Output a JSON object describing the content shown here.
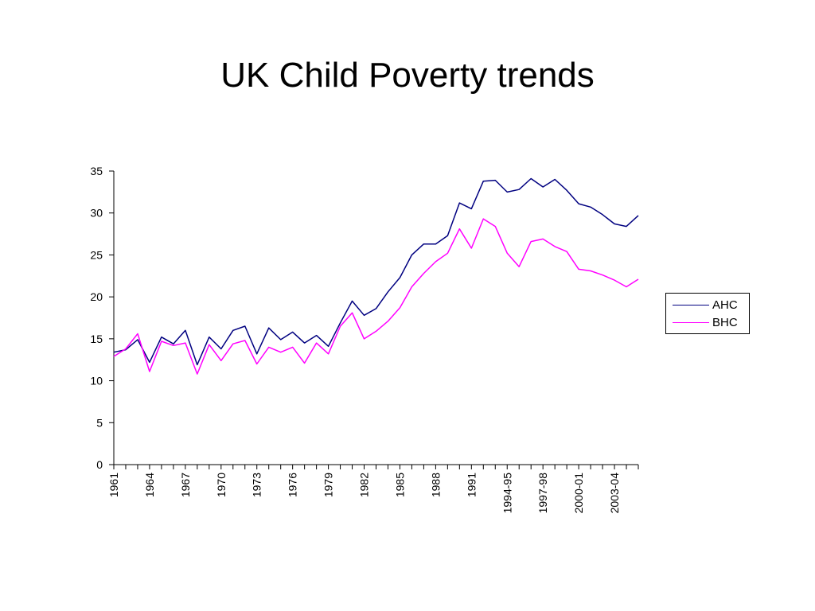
{
  "title": "UK Child Poverty trends",
  "colors": {
    "AHC": "#000080",
    "BHC": "#ff00ff"
  },
  "chart_data": {
    "type": "line",
    "title": "UK Child Poverty trends",
    "xlabel": "",
    "ylabel": "",
    "ylim": [
      0,
      35
    ],
    "yticks": [
      0,
      5,
      10,
      15,
      20,
      25,
      30,
      35
    ],
    "grid": false,
    "legend": "right",
    "x": [
      "1961",
      "1962",
      "1963",
      "1964",
      "1965",
      "1966",
      "1967",
      "1968",
      "1969",
      "1970",
      "1971",
      "1972",
      "1973",
      "1974",
      "1975",
      "1976",
      "1977",
      "1978",
      "1979",
      "1980",
      "1981",
      "1982",
      "1983",
      "1984",
      "1985",
      "1986",
      "1987",
      "1988",
      "1989",
      "1990",
      "1991",
      "1992",
      "1993-94",
      "1994-95",
      "1995-96",
      "1996-97",
      "1997-98",
      "1998-99",
      "1999-00",
      "2000-01",
      "2001-02",
      "2002-03",
      "2003-04",
      "2004-05",
      "2005-06"
    ],
    "xtick_labels": [
      {
        "index": 0,
        "label": "1961"
      },
      {
        "index": 3,
        "label": "1964"
      },
      {
        "index": 6,
        "label": "1967"
      },
      {
        "index": 9,
        "label": "1970"
      },
      {
        "index": 12,
        "label": "1973"
      },
      {
        "index": 15,
        "label": "1976"
      },
      {
        "index": 18,
        "label": "1979"
      },
      {
        "index": 21,
        "label": "1982"
      },
      {
        "index": 24,
        "label": "1985"
      },
      {
        "index": 27,
        "label": "1988"
      },
      {
        "index": 30,
        "label": "1991"
      },
      {
        "index": 33,
        "label": "1994-95"
      },
      {
        "index": 36,
        "label": "1997-98"
      },
      {
        "index": 39,
        "label": "2000-01"
      },
      {
        "index": 42,
        "label": "2003-04"
      }
    ],
    "series": [
      {
        "name": "AHC",
        "values": [
          13.4,
          13.7,
          14.9,
          12.2,
          15.2,
          14.4,
          16.0,
          11.9,
          15.2,
          13.8,
          16.0,
          16.5,
          13.2,
          16.3,
          14.9,
          15.8,
          14.5,
          15.4,
          14.1,
          16.9,
          19.5,
          17.8,
          18.6,
          20.6,
          22.3,
          25.0,
          26.3,
          26.3,
          27.3,
          31.2,
          30.5,
          33.8,
          33.9,
          32.5,
          32.8,
          34.1,
          33.1,
          34.0,
          32.7,
          31.1,
          30.7,
          29.8,
          28.7,
          28.4,
          29.7
        ]
      },
      {
        "name": "BHC",
        "values": [
          12.9,
          13.8,
          15.6,
          11.1,
          14.7,
          14.2,
          14.5,
          10.8,
          14.3,
          12.4,
          14.4,
          14.8,
          12.0,
          14.0,
          13.4,
          14.0,
          12.1,
          14.5,
          13.2,
          16.5,
          18.1,
          15.0,
          15.9,
          17.1,
          18.7,
          21.2,
          22.8,
          24.2,
          25.2,
          28.1,
          25.8,
          29.3,
          28.4,
          25.2,
          23.6,
          26.6,
          26.9,
          26.0,
          25.4,
          23.3,
          23.1,
          22.6,
          22.0,
          21.2,
          22.1
        ]
      }
    ]
  }
}
